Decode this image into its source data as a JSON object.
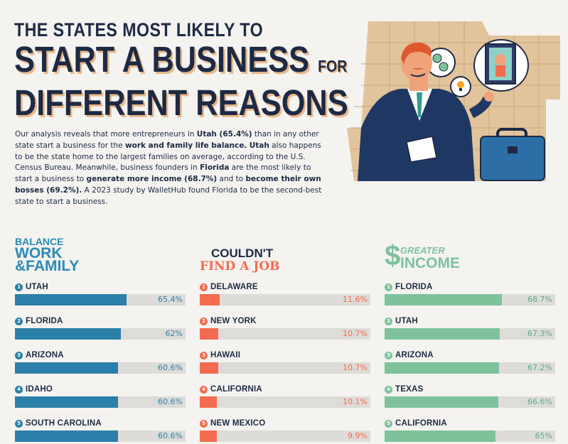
{
  "title": {
    "line1": "THE STATES MOST LIKELY TO",
    "line2": "START A BUSINESS",
    "line2_small": "FOR",
    "line3": "DIFFERENT REASONS"
  },
  "intro": {
    "p1": "Our analysis reveals that more entrepreneurs in ",
    "b1": "Utah (65.4%)",
    "p2": " than in any other state start a business for the ",
    "b2": "work and family life balance.",
    "p3": " ",
    "b3": "Utah",
    "p4": " also happens to be the state home to the largest families on average, according to the U.S. Census Bureau. Meanwhile, business founders in ",
    "b4": "Florida",
    "p5": " are the most likely to start a business to ",
    "b5": "generate more income (68.7%)",
    "p6": " and to ",
    "b6": "become their own bosses (69.2%).",
    "p7": " A 2023 study by WalletHub found Florida to be the second-best state to start a business."
  },
  "columns": [
    {
      "head_small": "BALANCE",
      "head_line1": "WORK",
      "head_line2": "&FAMILY",
      "color": "#2c7fa8",
      "value_color": "#2c7fa8",
      "rows": [
        {
          "rank": "1",
          "state": "UTAH",
          "value": 65.4,
          "label": "65.4%"
        },
        {
          "rank": "2",
          "state": "FLORIDA",
          "value": 62,
          "label": "62%"
        },
        {
          "rank": "3",
          "state": "ARIZONA",
          "value": 60.6,
          "label": "60.6%"
        },
        {
          "rank": "4",
          "state": "IDAHO",
          "value": 60.6,
          "label": "60.6%"
        },
        {
          "rank": "5",
          "state": "SOUTH CAROLINA",
          "value": 60.6,
          "label": "60.6%"
        }
      ]
    },
    {
      "head_line1": "COULDN'T",
      "head_line2": "FIND A JOB",
      "color": "#f46b4f",
      "value_color": "#f46b4f",
      "rows": [
        {
          "rank": "1",
          "state": "DELAWARE",
          "value": 11.6,
          "label": "11.6%"
        },
        {
          "rank": "2",
          "state": "NEW YORK",
          "value": 10.7,
          "label": "10.7%"
        },
        {
          "rank": "3",
          "state": "HAWAII",
          "value": 10.7,
          "label": "10.7%"
        },
        {
          "rank": "4",
          "state": "CALIFORNIA",
          "value": 10.1,
          "label": "10.1%"
        },
        {
          "rank": "5",
          "state": "NEW MEXICO",
          "value": 9.9,
          "label": "9.9%"
        }
      ]
    },
    {
      "head_symbol": "$",
      "head_line1": "GREATER",
      "head_line2": "INCOME",
      "color": "#7ec29c",
      "value_color": "#5aae7f",
      "rows": [
        {
          "rank": "1",
          "state": "FLORIDA",
          "value": 68.7,
          "label": "68.7%"
        },
        {
          "rank": "2",
          "state": "UTAH",
          "value": 67.3,
          "label": "67.3%"
        },
        {
          "rank": "3",
          "state": "ARIZONA",
          "value": 67.2,
          "label": "67.2%"
        },
        {
          "rank": "4",
          "state": "TEXAS",
          "value": 66.6,
          "label": "66.6%"
        },
        {
          "rank": "5",
          "state": "CALIFORNIA",
          "value": 65,
          "label": "65%"
        }
      ]
    }
  ],
  "colors": {
    "navy": "#1e2a44",
    "tan": "#e2c49c",
    "shadow": "#e9b88a",
    "background": "#f4f3f0",
    "track": "#dddcd9"
  },
  "illustration": {
    "icons": [
      "businessman-figure",
      "dollar-coins-icon",
      "lightbulb-icon",
      "family-portrait-icon",
      "briefcase-icon",
      "document-icon"
    ]
  }
}
